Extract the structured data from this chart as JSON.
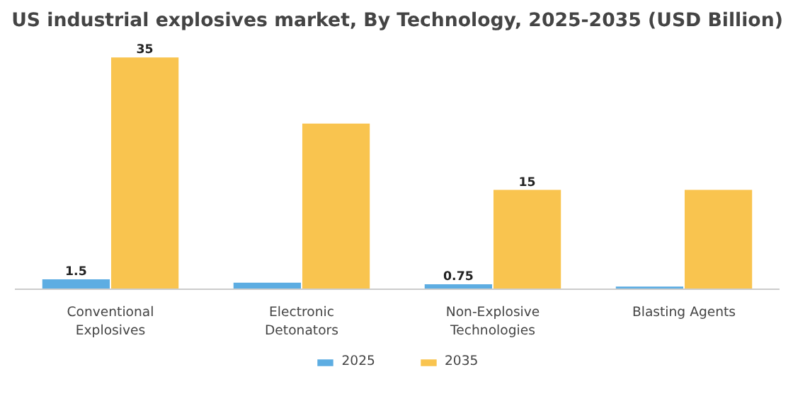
{
  "chart_data": {
    "type": "bar",
    "title": "US industrial explosives market, By Technology, 2025-2035 (USD Billion)",
    "categories": [
      "Conventional Explosives",
      "Electronic Detonators",
      "Non-Explosive Technologies",
      "Blasting Agents"
    ],
    "series": [
      {
        "name": "2025",
        "color": "#5dade2",
        "values": [
          1.5,
          1.0,
          0.75,
          0.4
        ],
        "value_labels": [
          "1.5",
          null,
          "0.75",
          null
        ]
      },
      {
        "name": "2035",
        "color": "#f9c44f",
        "values": [
          35,
          25,
          15,
          15
        ],
        "value_labels": [
          "35",
          null,
          "15",
          null
        ]
      }
    ],
    "grid": false,
    "legend": "bottom"
  }
}
